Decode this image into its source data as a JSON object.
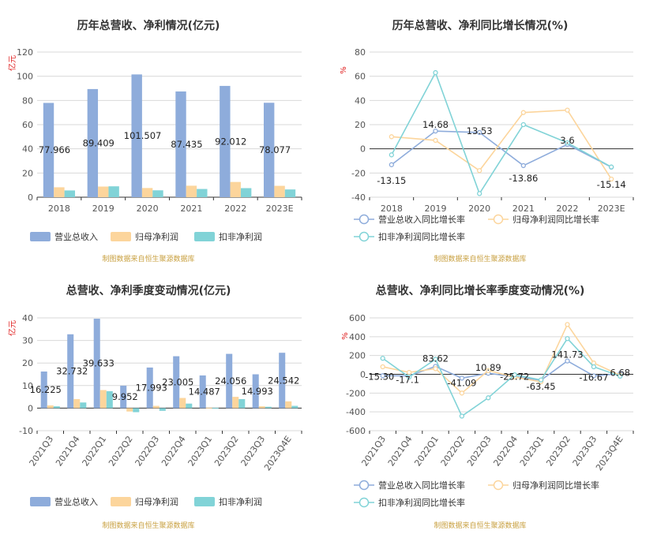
{
  "source_note": "制图数据来自恒生聚源数据库",
  "charts": [
    {
      "title": "历年总营收、净利情况(亿元)",
      "unit": "亿元",
      "legend": [
        "营业总收入",
        "归母净利润",
        "扣非净利润"
      ]
    },
    {
      "title": "历年总营收、净利同比增长情况(%)",
      "unit": "%",
      "legend": [
        "营业总收入同比增长率",
        "归母净利润同比增长率",
        "扣非净利润同比增长率"
      ]
    },
    {
      "title": "总营收、净利季度变动情况(亿元)",
      "unit": "亿元",
      "legend": [
        "营业总收入",
        "归母净利润",
        "扣非净利润"
      ]
    },
    {
      "title": "总营收、净利同比增长率季度变动情况(%)",
      "unit": "%",
      "legend": [
        "营业总收入同比增长率",
        "归母净利润同比增长率",
        "扣非净利润同比增长率"
      ]
    }
  ],
  "colors": {
    "revenue": "#8eacdb",
    "net_profit": "#fcd59c",
    "deducted_profit": "#81d3d7"
  },
  "chart_data": [
    {
      "type": "bar",
      "title": "历年总营收、净利情况(亿元)",
      "categories": [
        "2018",
        "2019",
        "2020",
        "2021",
        "2022",
        "2023E"
      ],
      "series": [
        {
          "name": "营业总收入",
          "values": [
            77.966,
            89.409,
            101.507,
            87.435,
            92.012,
            78.077
          ]
        },
        {
          "name": "归母净利润",
          "values": [
            8.2,
            8.8,
            7.6,
            9.5,
            12.6,
            9.4
          ]
        },
        {
          "name": "扣非净利润",
          "values": [
            5.6,
            9.0,
            5.7,
            6.8,
            7.5,
            6.4
          ]
        }
      ],
      "data_labels": [
        "77.966",
        "89.409",
        "101.507",
        "87.435",
        "92.012",
        "78.077"
      ],
      "ylim": [
        0,
        120
      ],
      "yticks": [
        0,
        20,
        40,
        60,
        80,
        100,
        120
      ],
      "ylabel": "亿元",
      "legend_position": "bottom",
      "grid": true
    },
    {
      "type": "line",
      "title": "历年总营收、净利同比增长情况(%)",
      "categories": [
        "2018",
        "2019",
        "2020",
        "2021",
        "2022",
        "2023E"
      ],
      "series": [
        {
          "name": "营业总收入同比增长率",
          "values": [
            -13.15,
            14.68,
            13.53,
            -13.86,
            3.6,
            -15.14
          ]
        },
        {
          "name": "归母净利润同比增长率",
          "values": [
            10,
            7,
            -18,
            30,
            32,
            -25
          ]
        },
        {
          "name": "扣非净利润同比增长率",
          "values": [
            -5,
            63,
            -37,
            20,
            5,
            -15
          ]
        }
      ],
      "data_labels": [
        "-13.15",
        "14.68",
        "13.53",
        "-13.86",
        "3.6",
        "-15.14"
      ],
      "ylim": [
        -40,
        80
      ],
      "yticks": [
        -40,
        -20,
        0,
        20,
        40,
        60,
        80
      ],
      "ylabel": "%",
      "legend_position": "bottom",
      "grid": true
    },
    {
      "type": "bar",
      "title": "总营收、净利季度变动情况(亿元)",
      "categories": [
        "2021Q3",
        "2021Q4",
        "2022Q1",
        "2022Q2",
        "2022Q3",
        "2022Q4",
        "2023Q1",
        "2023Q2",
        "2023Q3",
        "2023Q4E"
      ],
      "series": [
        {
          "name": "营业总收入",
          "values": [
            16.225,
            32.732,
            39.633,
            9.952,
            17.993,
            23.005,
            14.487,
            24.056,
            14.993,
            24.542
          ]
        },
        {
          "name": "归母净利润",
          "values": [
            1.2,
            4.0,
            8.0,
            -1.5,
            1.0,
            4.5,
            0.2,
            5.0,
            0.8,
            3.0
          ]
        },
        {
          "name": "扣非净利润",
          "values": [
            0.8,
            2.5,
            7.5,
            -1.8,
            -1.2,
            2.0,
            0.1,
            4.0,
            0.6,
            1.0
          ]
        }
      ],
      "data_labels": [
        "16.225",
        "32.732",
        "39.633",
        "9.952",
        "17.993",
        "23.005",
        "14.487",
        "24.056",
        "14.993",
        "24.542"
      ],
      "ylim": [
        -10,
        40
      ],
      "yticks": [
        -10,
        0,
        10,
        20,
        30,
        40
      ],
      "ylabel": "亿元",
      "legend_position": "bottom",
      "grid": true
    },
    {
      "type": "line",
      "title": "总营收、净利同比增长率季度变动情况(%)",
      "categories": [
        "2021Q3",
        "2021Q4",
        "2022Q1",
        "2022Q2",
        "2022Q3",
        "2022Q4",
        "2023Q1",
        "2023Q2",
        "2023Q3",
        "2023Q4E"
      ],
      "series": [
        {
          "name": "营业总收入同比增长率",
          "values": [
            -15.3,
            -17.1,
            83.62,
            -41.09,
            10.89,
            -25.72,
            -63.45,
            141.73,
            -16.67,
            6.68
          ]
        },
        {
          "name": "归母净利润同比增长率",
          "values": [
            80,
            20,
            60,
            -200,
            40,
            -30,
            -80,
            530,
            120,
            -10
          ]
        },
        {
          "name": "扣非净利润同比增长率",
          "values": [
            170,
            -30,
            160,
            -445,
            -250,
            -5,
            -60,
            380,
            80,
            -20
          ]
        }
      ],
      "data_labels": [
        "-15.30",
        "-17.1",
        "83.62",
        "-41.09",
        "10.89",
        "-25.72",
        "-63.45",
        "141.73",
        "-16.67",
        "6.68"
      ],
      "ylim": [
        -600,
        600
      ],
      "yticks": [
        -600,
        -400,
        -200,
        0,
        200,
        400,
        600
      ],
      "ylabel": "%",
      "legend_position": "bottom",
      "grid": true
    }
  ]
}
